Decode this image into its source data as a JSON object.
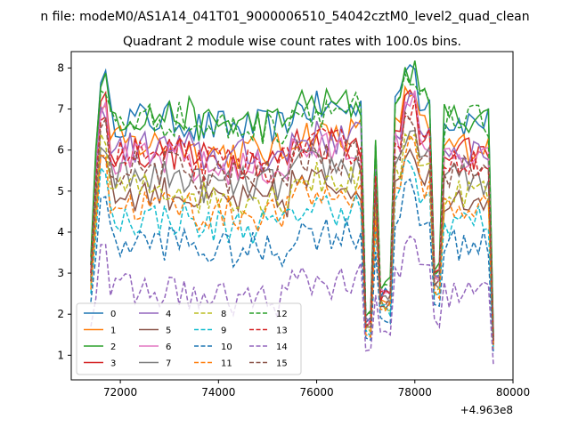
{
  "figure": {
    "suptitle": "n file: modeM0/AS1A14_041T01_9000006510_54042cztM0_level2_quad_clean",
    "title": "Quadrant 2 module wise count rates with 100.0s bins."
  },
  "chart_data": {
    "type": "line",
    "title": "Quadrant 2 module wise count rates with 100.0s bins.",
    "xlabel": "",
    "ylabel": "",
    "x_offset_label": "+4.963e8",
    "xlim": [
      71000,
      80000
    ],
    "ylim": [
      0.4,
      8.4
    ],
    "xticks": [
      72000,
      74000,
      76000,
      78000,
      80000
    ],
    "xtick_labels": [
      "72000",
      "74000",
      "76000",
      "78000",
      "80000"
    ],
    "yticks": [
      1,
      2,
      3,
      4,
      5,
      6,
      7,
      8
    ],
    "ytick_labels": [
      "1",
      "2",
      "3",
      "4",
      "5",
      "6",
      "7",
      "8"
    ],
    "grid": false,
    "legend_position": "lower-left",
    "legend_columns": 4,
    "shape": {
      "x_start": 71400,
      "x_step": 100,
      "x_end": 79650,
      "gap_dip_times": [
        77050,
        77250,
        77450,
        78450,
        79650
      ],
      "gap_peak_times": [
        77200,
        77900,
        78000
      ],
      "note": "count rates shown on the plot"
    },
    "series": [
      {
        "name": "0",
        "color": "#1f77b4",
        "dash": "solid",
        "level": 7.0,
        "peak": 8.0,
        "start": 3.2
      },
      {
        "name": "1",
        "color": "#ff7f0e",
        "dash": "solid",
        "level": 6.4,
        "peak": 7.3,
        "start": 2.9
      },
      {
        "name": "2",
        "color": "#2ca02c",
        "dash": "solid",
        "level": 7.1,
        "peak": 7.9,
        "start": 3.4
      },
      {
        "name": "3",
        "color": "#d62728",
        "dash": "solid",
        "level": 6.2,
        "peak": 7.5,
        "start": 3.0
      },
      {
        "name": "4",
        "color": "#9467bd",
        "dash": "solid",
        "level": 6.3,
        "peak": 7.1,
        "start": 3.1
      },
      {
        "name": "5",
        "color": "#8c564b",
        "dash": "solid",
        "level": 5.2,
        "peak": 6.0,
        "start": 2.8
      },
      {
        "name": "6",
        "color": "#e377c2",
        "dash": "solid",
        "level": 6.0,
        "peak": 7.2,
        "start": 3.0
      },
      {
        "name": "7",
        "color": "#7f7f7f",
        "dash": "solid",
        "level": 5.6,
        "peak": 6.2,
        "start": 2.9
      },
      {
        "name": "8",
        "color": "#bcbd22",
        "dash": "dashed",
        "level": 5.3,
        "peak": 6.4,
        "start": 2.7
      },
      {
        "name": "9",
        "color": "#17becf",
        "dash": "dashed",
        "level": 4.6,
        "peak": 5.6,
        "start": 2.5
      },
      {
        "name": "10",
        "color": "#1f77b4",
        "dash": "dashed",
        "level": 4.0,
        "peak": 5.0,
        "start": 2.3
      },
      {
        "name": "11",
        "color": "#ff7f0e",
        "dash": "dashed",
        "level": 4.9,
        "peak": 6.1,
        "start": 2.6
      },
      {
        "name": "12",
        "color": "#2ca02c",
        "dash": "dashed",
        "level": 7.0,
        "peak": 7.6,
        "start": 3.2
      },
      {
        "name": "13",
        "color": "#d62728",
        "dash": "dashed",
        "level": 6.1,
        "peak": 7.0,
        "start": 3.0
      },
      {
        "name": "14",
        "color": "#9467bd",
        "dash": "dashed",
        "level": 2.8,
        "peak": 3.8,
        "start": 1.7
      },
      {
        "name": "15",
        "color": "#8c564b",
        "dash": "dashed",
        "level": 5.8,
        "peak": 6.8,
        "start": 2.8
      }
    ]
  }
}
